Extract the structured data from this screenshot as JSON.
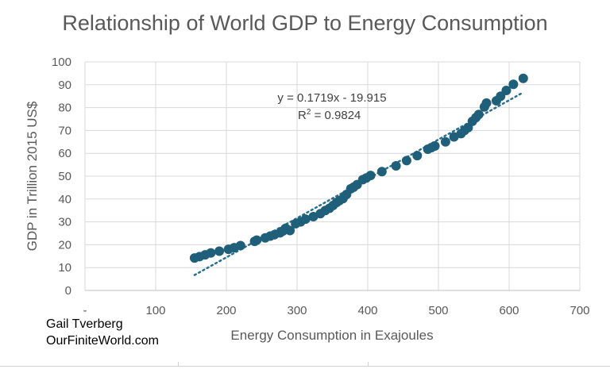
{
  "chart_data": {
    "type": "scatter",
    "title": "Relationship of World GDP to Energy Consumption",
    "xlabel": "Energy Consumption in Exajoules",
    "ylabel": "GDP in Trillion 2015 US$",
    "xlim": [
      0,
      700
    ],
    "ylim": [
      0,
      100
    ],
    "x_ticks": [
      "-",
      "100",
      "200",
      "300",
      "400",
      "500",
      "600",
      "700"
    ],
    "y_ticks": [
      "0",
      "10",
      "20",
      "30",
      "40",
      "50",
      "60",
      "70",
      "80",
      "90",
      "100"
    ],
    "grid": true,
    "marker_color": "#1f5f7a",
    "trendline": {
      "type": "linear",
      "slope": 0.1719,
      "intercept": -19.915,
      "x_range": [
        155,
        620
      ],
      "equation_label": "y = 0.1719x - 19.915",
      "r2_prefix": "R",
      "r2_exponent": "2",
      "r2_suffix": " = 0.9824",
      "color": "#2a6f8f"
    },
    "points": [
      {
        "x": 155,
        "y": 14.2
      },
      {
        "x": 162,
        "y": 14.8
      },
      {
        "x": 170,
        "y": 15.6
      },
      {
        "x": 178,
        "y": 16.4
      },
      {
        "x": 190,
        "y": 17.2
      },
      {
        "x": 203,
        "y": 18.0
      },
      {
        "x": 211,
        "y": 18.7
      },
      {
        "x": 220,
        "y": 19.6
      },
      {
        "x": 240,
        "y": 21.5
      },
      {
        "x": 243,
        "y": 22.0
      },
      {
        "x": 255,
        "y": 23.0
      },
      {
        "x": 262,
        "y": 23.8
      },
      {
        "x": 268,
        "y": 24.4
      },
      {
        "x": 276,
        "y": 25.2
      },
      {
        "x": 280,
        "y": 26.0
      },
      {
        "x": 284,
        "y": 27.2
      },
      {
        "x": 290,
        "y": 26.2
      },
      {
        "x": 298,
        "y": 29.2
      },
      {
        "x": 305,
        "y": 30.0
      },
      {
        "x": 312,
        "y": 31.2
      },
      {
        "x": 323,
        "y": 32.3
      },
      {
        "x": 333,
        "y": 33.6
      },
      {
        "x": 340,
        "y": 35.0
      },
      {
        "x": 346,
        "y": 36.0
      },
      {
        "x": 351,
        "y": 37.2
      },
      {
        "x": 356,
        "y": 38.5
      },
      {
        "x": 360,
        "y": 39.3
      },
      {
        "x": 365,
        "y": 40.2
      },
      {
        "x": 370,
        "y": 42.0
      },
      {
        "x": 376,
        "y": 44.5
      },
      {
        "x": 380,
        "y": 45.2
      },
      {
        "x": 385,
        "y": 46.3
      },
      {
        "x": 393,
        "y": 48.5
      },
      {
        "x": 398,
        "y": 49.2
      },
      {
        "x": 404,
        "y": 50.3
      },
      {
        "x": 420,
        "y": 52.0
      },
      {
        "x": 440,
        "y": 54.5
      },
      {
        "x": 455,
        "y": 56.8
      },
      {
        "x": 470,
        "y": 59.0
      },
      {
        "x": 485,
        "y": 61.8
      },
      {
        "x": 490,
        "y": 62.5
      },
      {
        "x": 495,
        "y": 63.2
      },
      {
        "x": 510,
        "y": 65.0
      },
      {
        "x": 522,
        "y": 67.2
      },
      {
        "x": 532,
        "y": 68.6
      },
      {
        "x": 537,
        "y": 70.0
      },
      {
        "x": 542,
        "y": 71.2
      },
      {
        "x": 548,
        "y": 74.0
      },
      {
        "x": 553,
        "y": 75.6
      },
      {
        "x": 557,
        "y": 77.0
      },
      {
        "x": 565,
        "y": 80.3
      },
      {
        "x": 568,
        "y": 82.0
      },
      {
        "x": 582,
        "y": 83.0
      },
      {
        "x": 588,
        "y": 85.0
      },
      {
        "x": 596,
        "y": 87.5
      },
      {
        "x": 606,
        "y": 90.2
      },
      {
        "x": 620,
        "y": 92.8
      }
    ]
  },
  "credit": {
    "author": "Gail Tverberg",
    "site": "OurFiniteWorld.com"
  }
}
